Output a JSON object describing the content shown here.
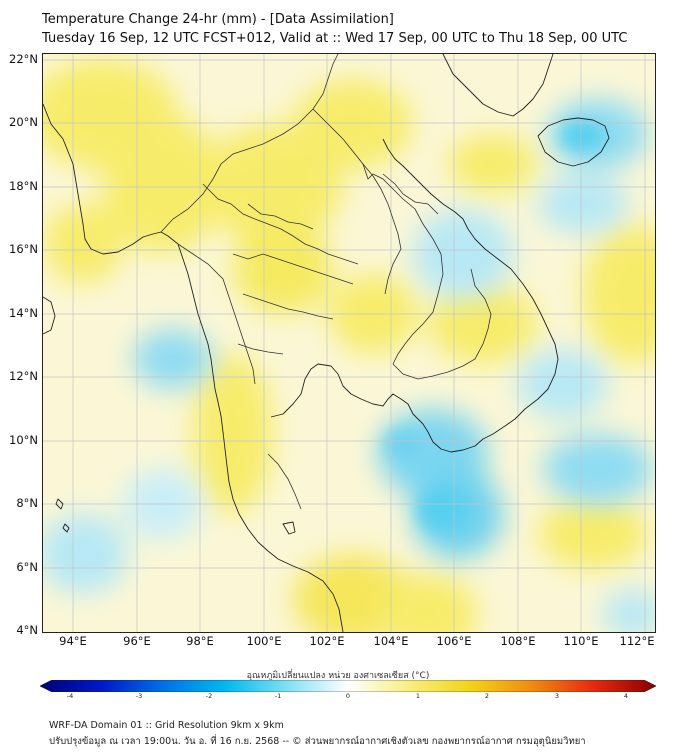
{
  "header": {
    "title": "Temperature Change 24-hr (mm) - [Data Assimilation]",
    "subtitle": "Tuesday 16 Sep, 12 UTC FCST+012, Valid at :: Wed 17 Sep, 00 UTC to Thu 18 Sep, 00 UTC"
  },
  "map": {
    "lat_labels": [
      "22°N",
      "20°N",
      "18°N",
      "16°N",
      "14°N",
      "12°N",
      "10°N",
      "8°N",
      "6°N",
      "4°N"
    ],
    "lon_labels": [
      "94°E",
      "96°E",
      "98°E",
      "100°E",
      "102°E",
      "104°E",
      "106°E",
      "108°E",
      "110°E",
      "112°E"
    ],
    "field_colors": {
      "warm": "#f7ec6a",
      "neutral": "#fbf7d6",
      "cool": "#a9e4f4",
      "cold": "#59d0ef"
    },
    "coastline_color": "#222222",
    "gridline_color": "#bfc4c8"
  },
  "colorbar": {
    "title": "อุณหภูมิเปลี่ยนแปลง หน่วย องศาเซลเซียส (°C)",
    "tick_labels": [
      "-4",
      "-3",
      "-2",
      "-1",
      "0",
      "1",
      "2",
      "3",
      "4"
    ],
    "range": [
      -4,
      4
    ],
    "colors": [
      "#00007a",
      "#0018c8",
      "#0070e8",
      "#00b8f0",
      "#7ee0f4",
      "#ffffff",
      "#f8ee80",
      "#f2d21a",
      "#f08a10",
      "#e62810",
      "#8a0000"
    ]
  },
  "footer": {
    "line1": "WRF-DA Domain 01 :: Grid Resolution 9km x 9km",
    "line2": "ปรับปรุงข้อมูล ณ เวลา 19:00น. วัน อ. ที่ 16 ก.ย. 2568 -- © ส่วนพยากรณ์อากาศเชิงตัวเลข กองพยากรณ์อากาศ กรมอุตุนิยมวิทยา"
  }
}
